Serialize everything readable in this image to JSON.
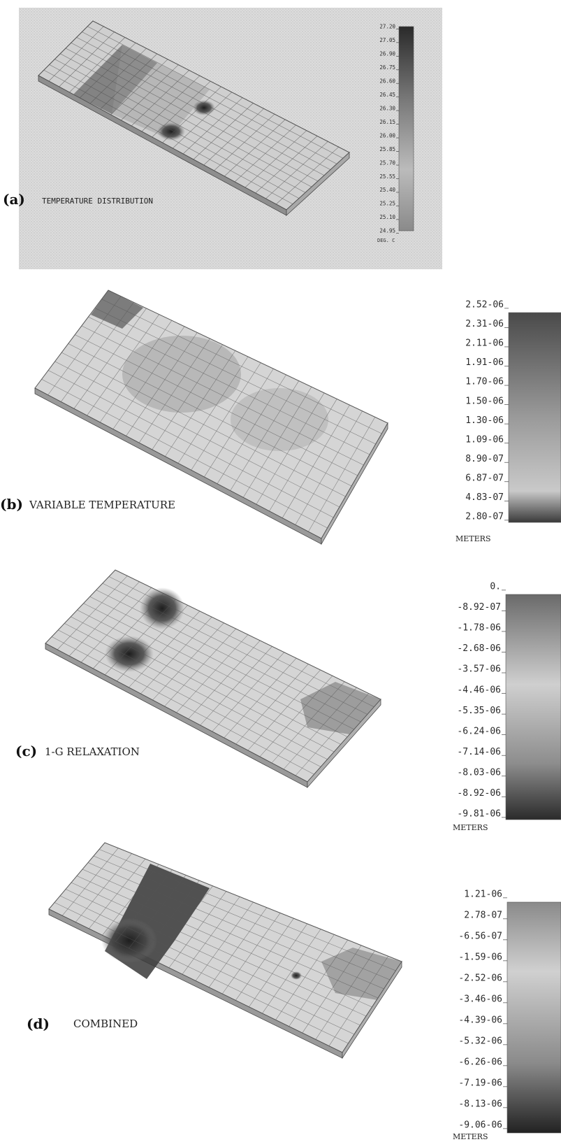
{
  "panels": [
    {
      "id": "a",
      "tag": "(a)",
      "caption": "TEMPERATURE DISTRIBUTION",
      "legend_values": [
        "27.20",
        "27.05",
        "26.90",
        "26.75",
        "26.60",
        "26.45",
        "26.30",
        "26.15",
        "26.00",
        "25.85",
        "25.70",
        "25.55",
        "25.40",
        "25.25",
        "25.10",
        "24.95"
      ],
      "unit": "DEG. C"
    },
    {
      "id": "b",
      "tag": "(b)",
      "caption": "VARIABLE TEMPERATURE",
      "legend_values": [
        "2.52-06",
        "2.31-06",
        "2.11-06",
        "1.91-06",
        "1.70-06",
        "1.50-06",
        "1.30-06",
        "1.09-06",
        "8.90-07",
        "6.87-07",
        "4.83-07",
        "2.80-07"
      ],
      "unit": "METERS"
    },
    {
      "id": "c",
      "tag": "(c)",
      "caption": "1-G RELAXATION",
      "legend_values": [
        "0.",
        "-8.92-07",
        "-1.78-06",
        "-2.68-06",
        "-3.57-06",
        "-4.46-06",
        "-5.35-06",
        "-6.24-06",
        "-7.14-06",
        "-8.03-06",
        "-8.92-06",
        "-9.81-06"
      ],
      "unit": "METERS"
    },
    {
      "id": "d",
      "tag": "(d)",
      "caption": "COMBINED",
      "legend_values": [
        "1.21-06",
        "2.78-07",
        "-6.56-07",
        "-1.59-06",
        "-2.52-06",
        "-3.46-06",
        "-4.39-06",
        "-5.32-06",
        "-6.26-06",
        "-7.19-06",
        "-8.13-06",
        "-9.06-06"
      ],
      "unit": "METERS"
    }
  ]
}
